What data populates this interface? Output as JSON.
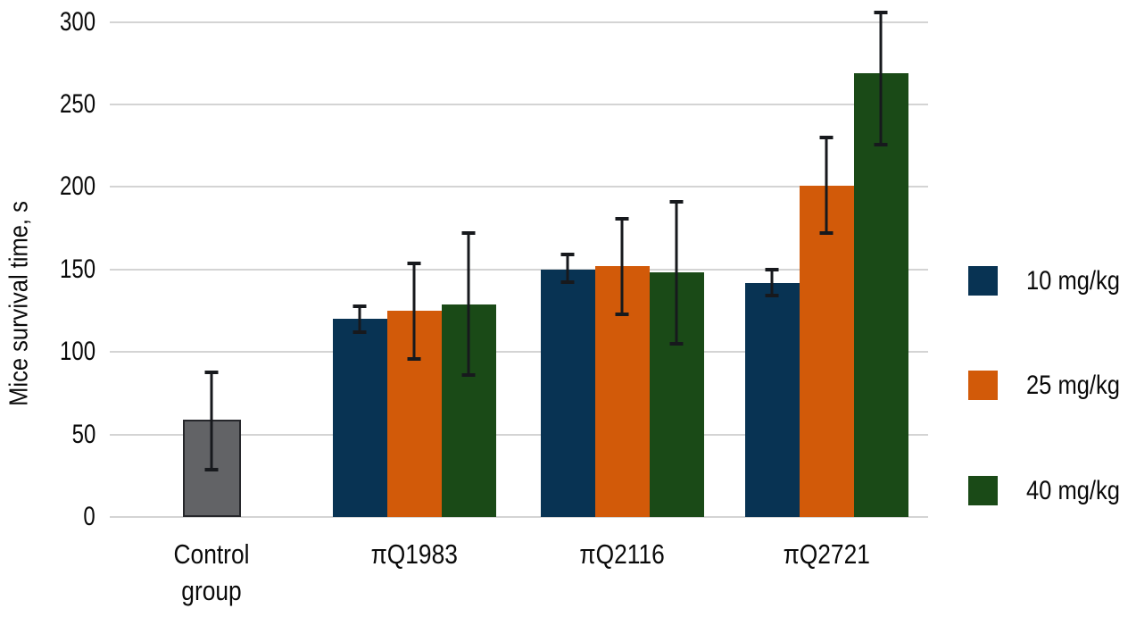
{
  "chart_data": {
    "type": "bar",
    "title": "",
    "xlabel": "",
    "ylabel": "Mice survival time, s",
    "ylim": [
      0,
      300
    ],
    "y_ticks": [
      0,
      50,
      100,
      150,
      200,
      250,
      300
    ],
    "grid": "horizontal",
    "legend_position": "right",
    "background_color": "#ffffff",
    "gridline_color": "#d4d4d4",
    "error_bar_color": "#17191d",
    "categories": [
      "Control group",
      "πQ1983",
      "πQ2116",
      "πQ2721"
    ],
    "series": [
      {
        "name": "Control",
        "color": "#626366",
        "border_color": "#26272b",
        "in_legend": false,
        "bars": [
          {
            "category_index": 0,
            "value": 59,
            "err_low": 28,
            "err_high": 89
          }
        ]
      },
      {
        "name": "10 mg/kg",
        "color": "#083353",
        "in_legend": true,
        "bars": [
          {
            "category_index": 1,
            "value": 120,
            "err_low": 111,
            "err_high": 129
          },
          {
            "category_index": 2,
            "value": 150,
            "err_low": 141,
            "err_high": 160
          },
          {
            "category_index": 3,
            "value": 142,
            "err_low": 133,
            "err_high": 151
          }
        ]
      },
      {
        "name": "25 mg/kg",
        "color": "#d25a09",
        "in_legend": true,
        "bars": [
          {
            "category_index": 1,
            "value": 125,
            "err_low": 95,
            "err_high": 155
          },
          {
            "category_index": 2,
            "value": 152,
            "err_low": 122,
            "err_high": 182
          },
          {
            "category_index": 3,
            "value": 201,
            "err_low": 171,
            "err_high": 231
          }
        ]
      },
      {
        "name": "40 mg/kg",
        "color": "#1a4a17",
        "in_legend": true,
        "bars": [
          {
            "category_index": 1,
            "value": 129,
            "err_low": 85,
            "err_high": 173
          },
          {
            "category_index": 2,
            "value": 148,
            "err_low": 104,
            "err_high": 192
          },
          {
            "category_index": 3,
            "value": 269,
            "err_low": 225,
            "err_high": 307
          }
        ]
      }
    ]
  }
}
